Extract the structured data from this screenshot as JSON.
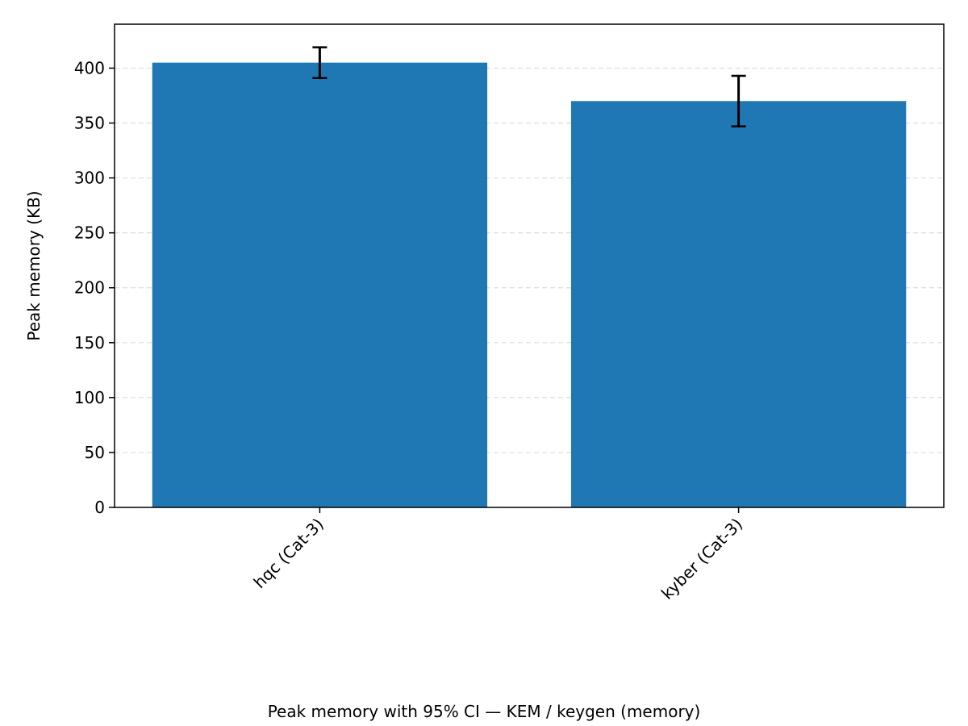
{
  "chart_data": {
    "type": "bar",
    "categories": [
      "hqc (Cat-3)",
      "kyber (Cat-3)"
    ],
    "values": [
      405,
      370
    ],
    "error_bars": [
      {
        "lower": 391,
        "upper": 419
      },
      {
        "lower": 347,
        "upper": 393
      }
    ],
    "ylabel": "Peak memory (KB)",
    "xlabel": "Peak memory with 95% CI — KEM / keygen (memory)",
    "ylim": [
      0,
      440
    ],
    "yticks": [
      0,
      50,
      100,
      150,
      200,
      250,
      300,
      350,
      400
    ],
    "grid": "y-dashed",
    "colors": {
      "bar": "#1f77b4",
      "error_bar": "#000000",
      "grid": "#dddddd",
      "axis": "#000000"
    }
  }
}
